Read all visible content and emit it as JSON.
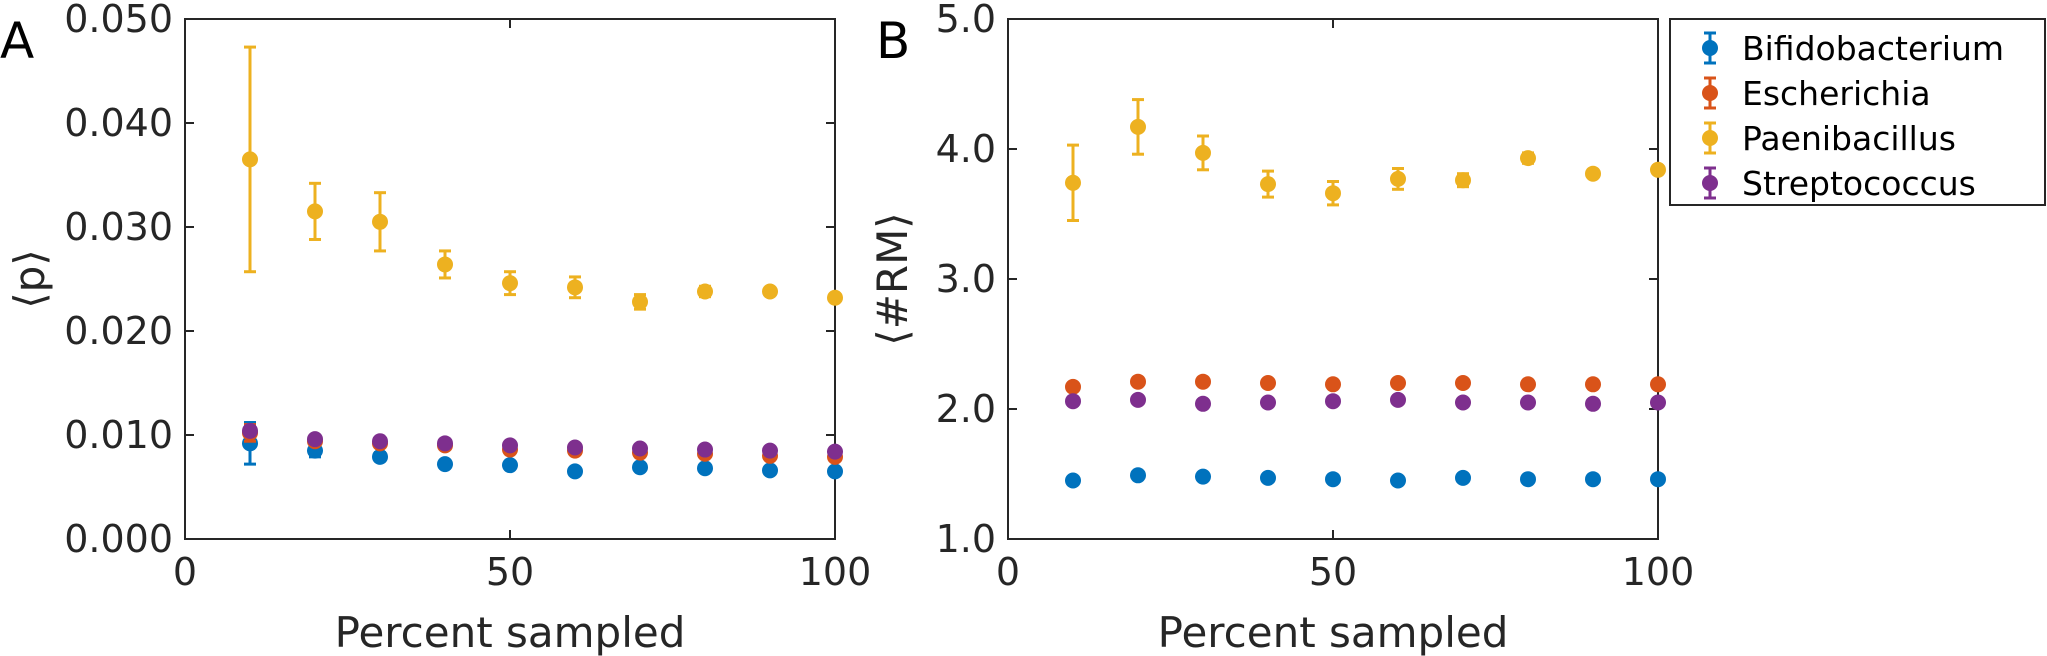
{
  "chart_data": [
    {
      "panel_label": "A",
      "type": "scatter",
      "title": "",
      "xlabel": "Percent sampled",
      "ylabel": "⟨p⟩",
      "xlim": [
        0,
        100
      ],
      "ylim": [
        0.0,
        0.05
      ],
      "xticks": [
        0,
        50,
        100
      ],
      "xtick_labels": [
        "0",
        "50",
        "100"
      ],
      "yticks": [
        0.0,
        0.01,
        0.02,
        0.03,
        0.04,
        0.05
      ],
      "ytick_labels": [
        "0.000",
        "0.010",
        "0.020",
        "0.030",
        "0.040",
        "0.050"
      ],
      "x": [
        10,
        20,
        30,
        40,
        50,
        60,
        70,
        80,
        90,
        100
      ],
      "series": [
        {
          "name": "Bifidobacterium",
          "color": "#0072BD",
          "values": [
            0.0092,
            0.0085,
            0.0079,
            0.0072,
            0.0071,
            0.0065,
            0.0069,
            0.0068,
            0.0066,
            0.0065
          ],
          "errors": [
            0.002,
            0.0006,
            0.0004,
            0.0002,
            0.0001,
            0.0001,
            0.0001,
            0.0001,
            0.0,
            0.0
          ]
        },
        {
          "name": "Escherichia",
          "color": "#D95319",
          "values": [
            0.0102,
            0.0094,
            0.0092,
            0.009,
            0.0086,
            0.0085,
            0.0083,
            0.0082,
            0.008,
            0.0079
          ],
          "errors": [
            0.0008,
            0.0003,
            0.0002,
            0.0001,
            0.0001,
            0.0001,
            0.0001,
            0.0,
            0.0,
            0.0
          ]
        },
        {
          "name": "Paenibacillus",
          "color": "#EDB120",
          "values": [
            0.0365,
            0.0315,
            0.0305,
            0.0264,
            0.0246,
            0.0242,
            0.0228,
            0.0238,
            0.0238,
            0.0232
          ],
          "errors": [
            0.0108,
            0.0027,
            0.0028,
            0.0013,
            0.0011,
            0.001,
            0.0007,
            0.0005,
            0.0002,
            0.0
          ]
        },
        {
          "name": "Streptococcus",
          "color": "#7E2F8E",
          "values": [
            0.0104,
            0.0096,
            0.0094,
            0.0092,
            0.009,
            0.0088,
            0.0087,
            0.0086,
            0.0085,
            0.0084
          ],
          "errors": [
            0.0004,
            0.0002,
            0.0001,
            0.0001,
            0.0001,
            0.0,
            0.0,
            0.0,
            0.0,
            0.0
          ]
        }
      ]
    },
    {
      "panel_label": "B",
      "type": "scatter",
      "title": "",
      "xlabel": "Percent sampled",
      "ylabel": "⟨#RM⟩",
      "xlim": [
        0,
        100
      ],
      "ylim": [
        1.0,
        5.0
      ],
      "xticks": [
        0,
        50,
        100
      ],
      "xtick_labels": [
        "0",
        "50",
        "100"
      ],
      "yticks": [
        1.0,
        2.0,
        3.0,
        4.0,
        5.0
      ],
      "ytick_labels": [
        "1.0",
        "2.0",
        "3.0",
        "4.0",
        "5.0"
      ],
      "x": [
        10,
        20,
        30,
        40,
        50,
        60,
        70,
        80,
        90,
        100
      ],
      "series": [
        {
          "name": "Bifidobacterium",
          "color": "#0072BD",
          "values": [
            1.45,
            1.49,
            1.48,
            1.47,
            1.46,
            1.45,
            1.47,
            1.46,
            1.46,
            1.46
          ],
          "errors": [
            0.02,
            0.02,
            0.01,
            0.01,
            0.01,
            0.01,
            0.01,
            0.0,
            0.0,
            0.0
          ]
        },
        {
          "name": "Escherichia",
          "color": "#D95319",
          "values": [
            2.17,
            2.21,
            2.21,
            2.2,
            2.19,
            2.2,
            2.2,
            2.19,
            2.19,
            2.19
          ],
          "errors": [
            0.03,
            0.02,
            0.02,
            0.01,
            0.01,
            0.01,
            0.0,
            0.0,
            0.0,
            0.0
          ]
        },
        {
          "name": "Paenibacillus",
          "color": "#EDB120",
          "values": [
            3.74,
            4.17,
            3.97,
            3.73,
            3.66,
            3.77,
            3.76,
            3.93,
            3.81,
            3.84
          ],
          "errors": [
            0.29,
            0.21,
            0.13,
            0.1,
            0.09,
            0.08,
            0.05,
            0.04,
            0.02,
            0.0
          ]
        },
        {
          "name": "Streptococcus",
          "color": "#7E2F8E",
          "values": [
            2.06,
            2.07,
            2.04,
            2.05,
            2.06,
            2.07,
            2.05,
            2.05,
            2.04,
            2.05
          ],
          "errors": [
            0.03,
            0.02,
            0.01,
            0.01,
            0.01,
            0.01,
            0.0,
            0.0,
            0.0,
            0.0
          ]
        }
      ]
    }
  ],
  "legend": {
    "placement": "right of panel B",
    "entries": [
      "Bifidobacterium",
      "Escherichia",
      "Paenibacillus",
      "Streptococcus"
    ]
  }
}
